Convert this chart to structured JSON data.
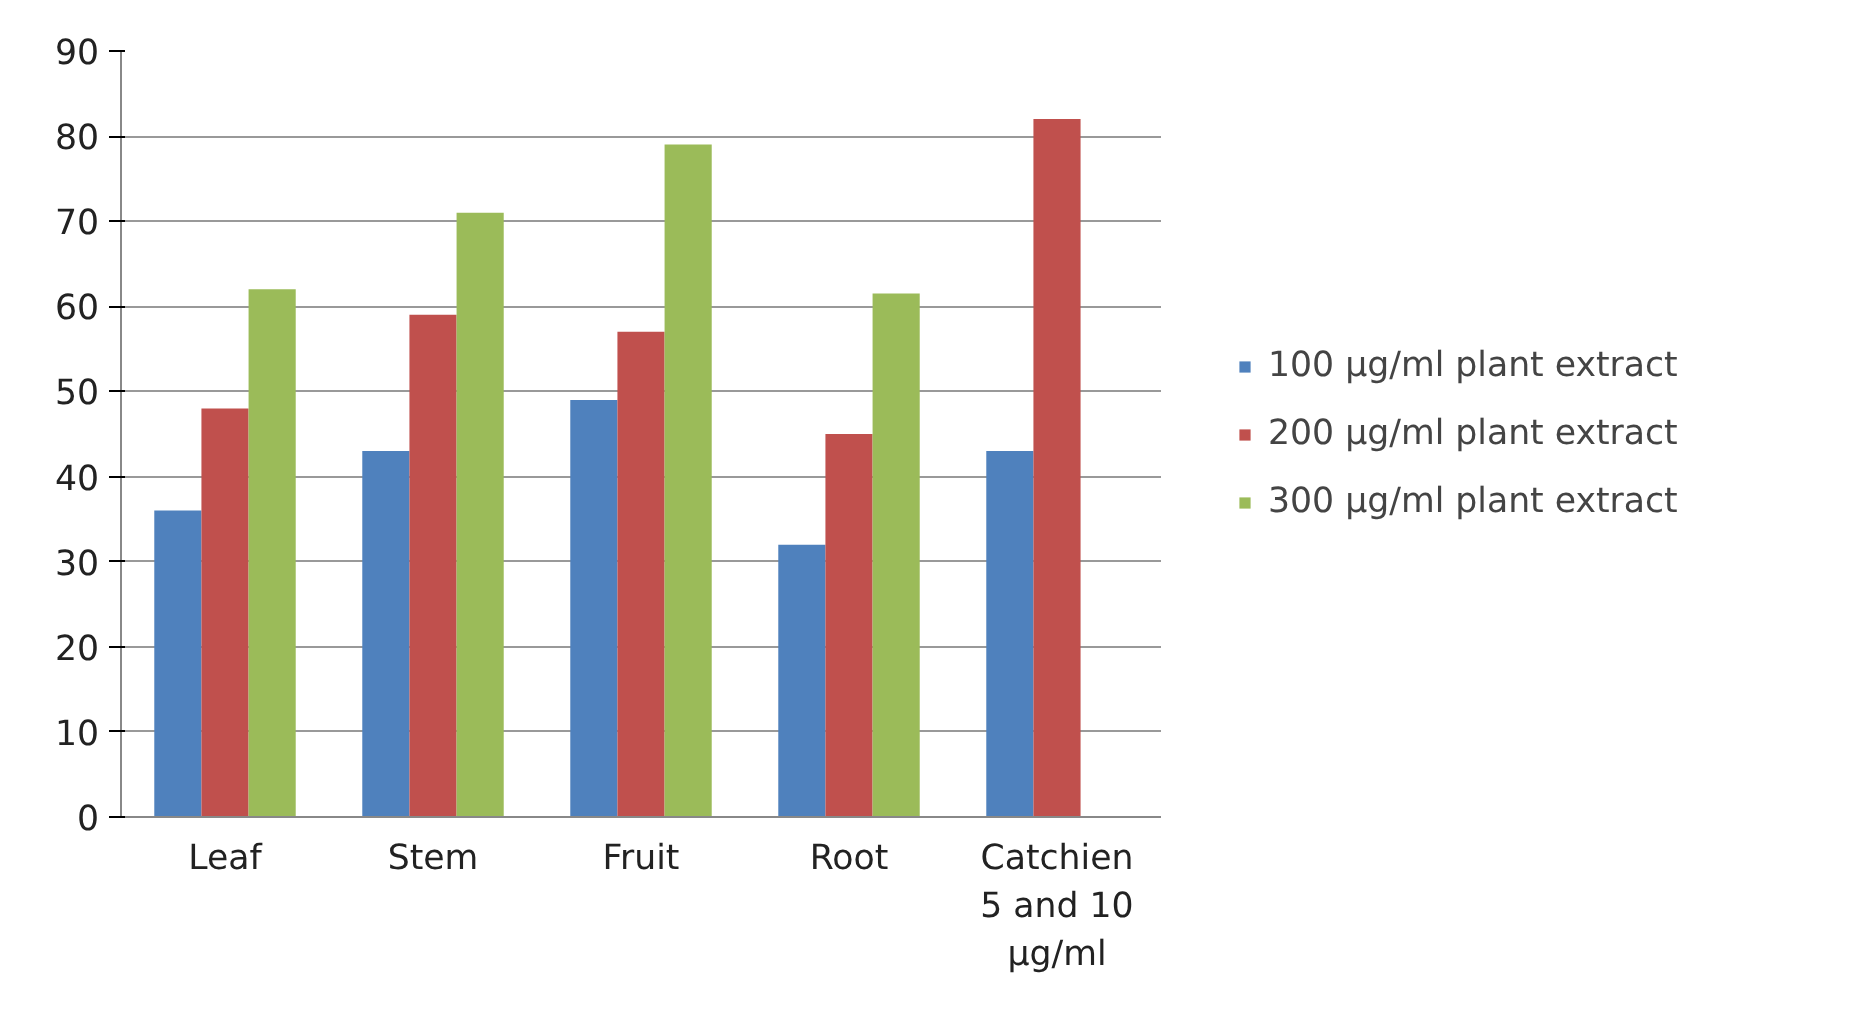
{
  "chart_data": {
    "type": "bar",
    "categories": [
      "Leaf",
      "Stem",
      "Fruit",
      "Root",
      "Catchien 5 and 10 µg/ml"
    ],
    "series": [
      {
        "name": "100 µg/ml plant extract",
        "color": "#4f81bd",
        "values": [
          36,
          43,
          49,
          32,
          43
        ]
      },
      {
        "name": "200 µg/ml plant extract",
        "color": "#c0504d",
        "values": [
          48,
          59,
          57,
          45,
          82
        ]
      },
      {
        "name": "300 µg/ml plant extract",
        "color": "#9bbb59",
        "values": [
          62,
          71,
          79,
          61.5,
          null
        ]
      }
    ],
    "ylim": [
      0,
      90
    ],
    "yticks": [
      0,
      10,
      20,
      30,
      40,
      50,
      60,
      70,
      80,
      90
    ],
    "grid": "y",
    "legend": "right"
  }
}
